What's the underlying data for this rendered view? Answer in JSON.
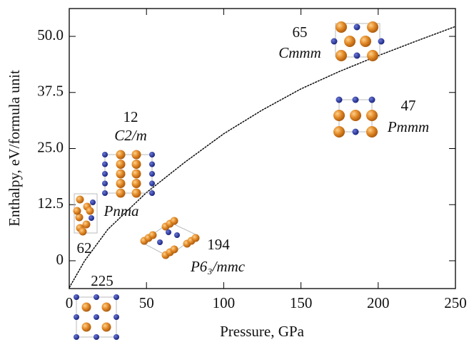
{
  "chart_data": {
    "type": "line",
    "xlabel": "Pressure, GPa",
    "ylabel": "Enthalpy, eV/formula unit",
    "x": [
      0,
      5,
      10,
      25,
      50,
      75,
      100,
      125,
      150,
      175,
      200,
      225,
      250
    ],
    "values": [
      -6,
      -3,
      0,
      7,
      15.2,
      22,
      28.3,
      33.6,
      38.3,
      42.2,
      45.7,
      49,
      52.2
    ],
    "color": "#000000",
    "xlim": [
      0,
      250
    ],
    "ylim": [
      -6.2,
      56.2
    ],
    "xticks": [
      0,
      50,
      100,
      150,
      200,
      250
    ],
    "yticks": [
      0,
      12.5,
      {
        "value": 25,
        "label": "25.0"
      },
      37.5,
      {
        "value": 50,
        "label": "50.0"
      }
    ],
    "annotations": [
      "65",
      "Cmmm",
      "47",
      "Pmmm",
      "12",
      "C2/m",
      "Pnma",
      "62",
      "194",
      "P6₃/mmc",
      "225"
    ]
  }
}
